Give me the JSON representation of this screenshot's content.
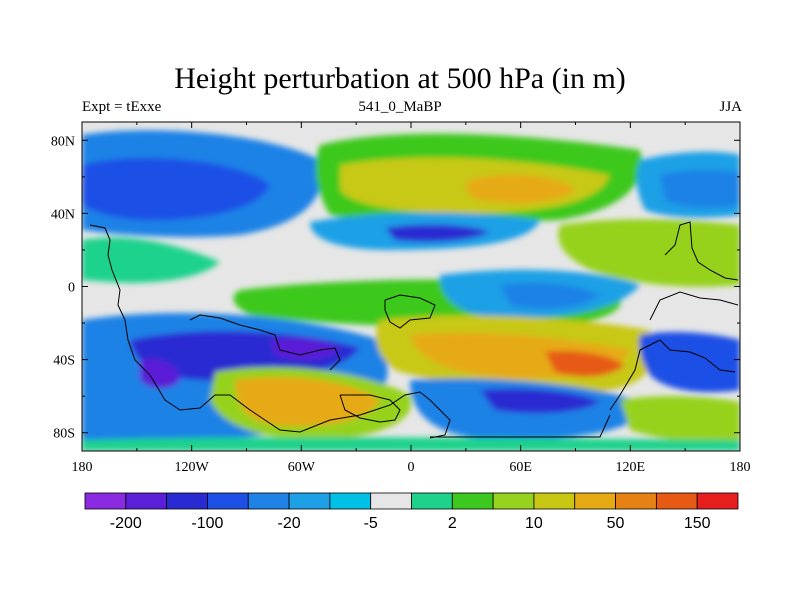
{
  "title": "Height perturbation at 500 hPa (in m)",
  "subtitle_left": "Expt = tExxe",
  "subtitle_center": "541_0_MaBP",
  "subtitle_right": "JJA",
  "map": {
    "projection": "cylindrical equidistant",
    "lon_range": [
      -180,
      180
    ],
    "lat_range": [
      -90,
      90
    ],
    "xtick_labels": [
      "180",
      "120W",
      "60W",
      "0",
      "60E",
      "120E",
      "180"
    ],
    "ytick_labels": [
      "80N",
      "40N",
      "0",
      "40S",
      "80S"
    ],
    "background_color": "#e6e6e6"
  },
  "colorbar": {
    "labels": [
      "-200",
      "-100",
      "-20",
      "-5",
      "2",
      "10",
      "50",
      "150"
    ],
    "colors": [
      "#8a2be2",
      "#5a1fd6",
      "#2a2ad2",
      "#1e50e6",
      "#1e82e6",
      "#1ea0e6",
      "#00c0e6",
      "#e6e6e6",
      "#1ed28c",
      "#3cc81e",
      "#96d21e",
      "#c8c814",
      "#e6aa14",
      "#e68214",
      "#e65a14",
      "#e61e1e"
    ]
  }
}
